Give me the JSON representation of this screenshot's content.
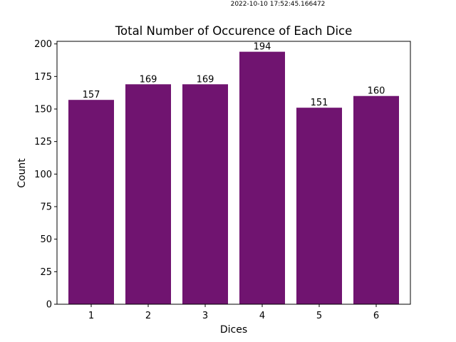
{
  "timestamp": "2022-10-10 17:52:45.166472",
  "chart_data": {
    "type": "bar",
    "title": "Total Number of Occurence of Each Dice",
    "xlabel": "Dices",
    "ylabel": "Count",
    "categories": [
      "1",
      "2",
      "3",
      "4",
      "5",
      "6"
    ],
    "values": [
      157,
      169,
      169,
      194,
      151,
      160
    ],
    "data_labels": [
      "157",
      "169",
      "169",
      "194",
      "151",
      "160"
    ],
    "ylim": [
      0,
      202
    ],
    "yticks": [
      0,
      25,
      50,
      75,
      100,
      125,
      150,
      175,
      200
    ],
    "ytick_labels": [
      "0",
      "25",
      "50",
      "75",
      "100",
      "125",
      "150",
      "175",
      "200"
    ],
    "bar_color": "#701470",
    "grid": false,
    "legend": "none"
  }
}
